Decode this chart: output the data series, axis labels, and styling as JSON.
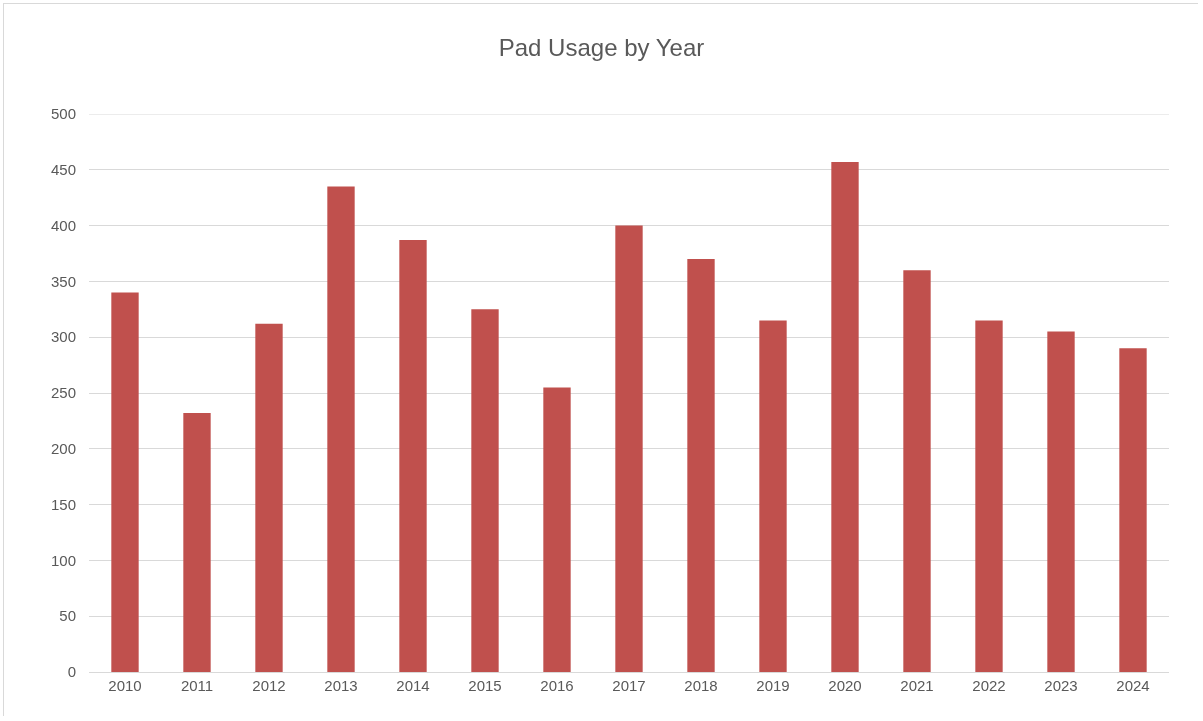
{
  "chart_data": {
    "type": "bar",
    "title": "Pad Usage by Year",
    "categories": [
      "2010",
      "2011",
      "2012",
      "2013",
      "2014",
      "2015",
      "2016",
      "2017",
      "2018",
      "2019",
      "2020",
      "2021",
      "2022",
      "2023",
      "2024"
    ],
    "values": [
      340,
      232,
      312,
      435,
      387,
      325,
      255,
      400,
      370,
      315,
      457,
      360,
      315,
      305,
      290
    ],
    "color": "#c0504d",
    "ylim": [
      0,
      500
    ],
    "yticks": [
      0,
      50,
      100,
      150,
      200,
      250,
      300,
      350,
      400,
      450,
      500
    ],
    "grid": "y"
  }
}
